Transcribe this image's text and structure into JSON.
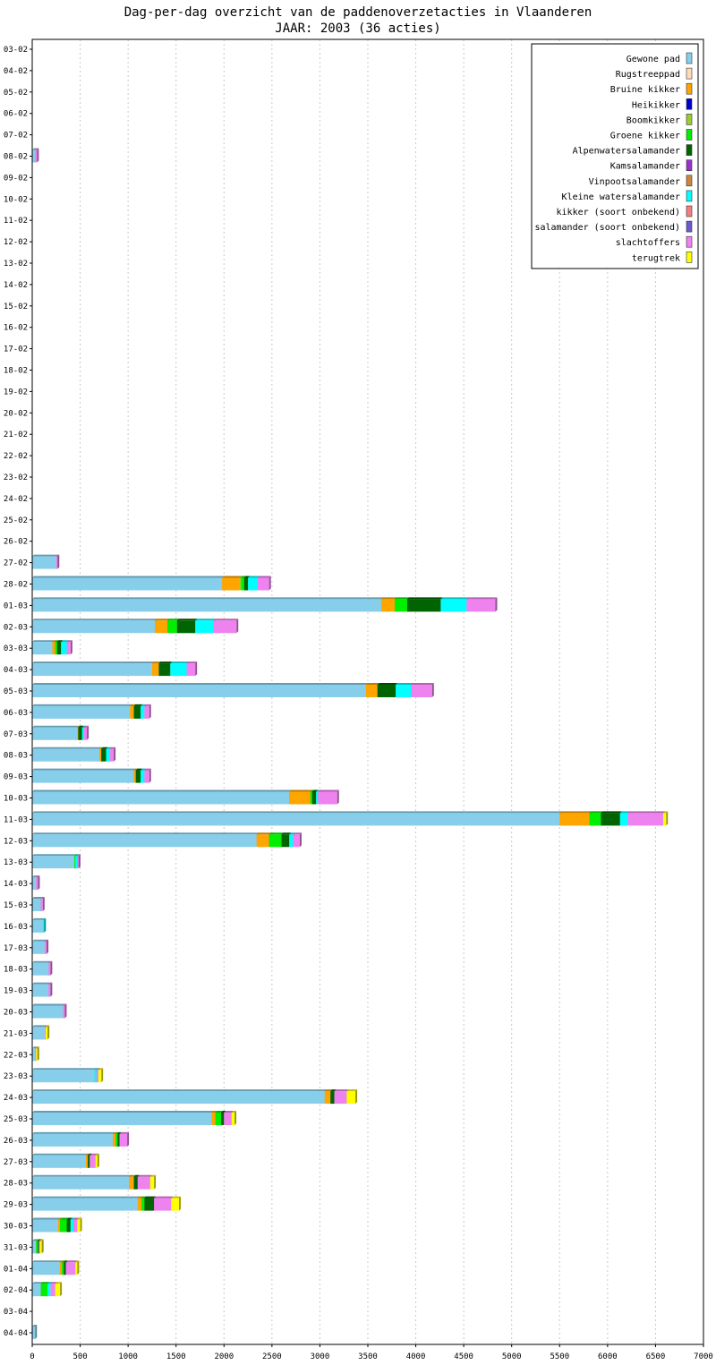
{
  "chart_data": {
    "type": "bar",
    "orientation": "horizontal",
    "stacked": true,
    "title": "Dag-per-dag overzicht van de paddenoverzetacties in Vlaanderen",
    "subtitle": "JAAR: 2003 (36 acties)",
    "xlabel": "",
    "ylabel": "",
    "xlim": [
      0,
      7000
    ],
    "xticks": [
      0,
      500,
      1000,
      1500,
      2000,
      2500,
      3000,
      3500,
      4000,
      4500,
      5000,
      5500,
      6000,
      6500,
      7000
    ],
    "grid": true,
    "legend_position": "top-right",
    "categories": [
      "03-02",
      "04-02",
      "05-02",
      "06-02",
      "07-02",
      "08-02",
      "09-02",
      "10-02",
      "11-02",
      "12-02",
      "13-02",
      "14-02",
      "15-02",
      "16-02",
      "17-02",
      "18-02",
      "19-02",
      "20-02",
      "21-02",
      "22-02",
      "23-02",
      "24-02",
      "25-02",
      "26-02",
      "27-02",
      "28-02",
      "01-03",
      "02-03",
      "03-03",
      "04-03",
      "05-03",
      "06-03",
      "07-03",
      "08-03",
      "09-03",
      "10-03",
      "11-03",
      "12-03",
      "13-03",
      "14-03",
      "15-03",
      "16-03",
      "17-03",
      "18-03",
      "19-03",
      "20-03",
      "21-03",
      "22-03",
      "23-03",
      "24-03",
      "25-03",
      "26-03",
      "27-03",
      "28-03",
      "29-03",
      "30-03",
      "31-03",
      "01-04",
      "02-04",
      "03-04",
      "04-04"
    ],
    "series": [
      {
        "name": "Gewone pad",
        "color": "#87ceeb",
        "values": [
          0,
          0,
          0,
          0,
          0,
          30,
          0,
          0,
          0,
          0,
          0,
          0,
          0,
          0,
          0,
          0,
          0,
          0,
          0,
          0,
          0,
          0,
          0,
          0,
          250,
          1980,
          3640,
          1280,
          210,
          1250,
          3480,
          1020,
          470,
          700,
          1060,
          2680,
          5500,
          2340,
          440,
          40,
          90,
          110,
          130,
          170,
          170,
          320,
          130,
          30,
          650,
          3050,
          1870,
          840,
          560,
          1010,
          1100,
          270,
          40,
          290,
          90,
          0,
          30
        ]
      },
      {
        "name": "Rugstreeppad",
        "color": "#ffdab9",
        "values": [
          0,
          0,
          0,
          0,
          0,
          0,
          0,
          0,
          0,
          0,
          0,
          0,
          0,
          0,
          0,
          0,
          0,
          0,
          0,
          0,
          0,
          0,
          0,
          0,
          0,
          0,
          0,
          0,
          0,
          0,
          0,
          0,
          0,
          0,
          0,
          0,
          0,
          0,
          0,
          0,
          0,
          0,
          0,
          0,
          0,
          0,
          0,
          0,
          0,
          0,
          0,
          0,
          0,
          0,
          0,
          0,
          0,
          0,
          0,
          0,
          0
        ]
      },
      {
        "name": "Bruine kikker",
        "color": "#ffa500",
        "values": [
          0,
          0,
          0,
          0,
          0,
          0,
          0,
          0,
          0,
          0,
          0,
          0,
          0,
          0,
          0,
          0,
          0,
          0,
          0,
          0,
          0,
          0,
          0,
          0,
          0,
          180,
          140,
          130,
          30,
          70,
          120,
          40,
          10,
          20,
          20,
          220,
          310,
          130,
          0,
          0,
          0,
          0,
          0,
          0,
          0,
          0,
          0,
          0,
          0,
          60,
          40,
          30,
          20,
          50,
          40,
          20,
          0,
          20,
          0,
          0,
          0
        ]
      },
      {
        "name": "Heikikker",
        "color": "#0000cd",
        "values": [
          0,
          0,
          0,
          0,
          0,
          0,
          0,
          0,
          0,
          0,
          0,
          0,
          0,
          0,
          0,
          0,
          0,
          0,
          0,
          0,
          0,
          0,
          0,
          0,
          0,
          0,
          0,
          0,
          0,
          0,
          0,
          0,
          0,
          0,
          0,
          0,
          0,
          0,
          0,
          0,
          0,
          0,
          0,
          0,
          0,
          0,
          0,
          0,
          0,
          0,
          0,
          0,
          0,
          0,
          0,
          0,
          0,
          0,
          0,
          0,
          0
        ]
      },
      {
        "name": "Boomkikker",
        "color": "#9acd32",
        "values": [
          0,
          0,
          0,
          0,
          0,
          0,
          0,
          0,
          0,
          0,
          0,
          0,
          0,
          0,
          0,
          0,
          0,
          0,
          0,
          0,
          0,
          0,
          0,
          0,
          0,
          20,
          0,
          0,
          0,
          0,
          0,
          0,
          0,
          0,
          0,
          0,
          0,
          0,
          0,
          0,
          0,
          0,
          0,
          0,
          0,
          0,
          0,
          0,
          0,
          0,
          0,
          0,
          0,
          0,
          0,
          0,
          0,
          0,
          0,
          0,
          0
        ]
      },
      {
        "name": "Groene kikker",
        "color": "#00ee00",
        "values": [
          0,
          0,
          0,
          0,
          0,
          0,
          0,
          0,
          0,
          0,
          0,
          0,
          0,
          0,
          0,
          0,
          0,
          0,
          0,
          0,
          0,
          0,
          0,
          0,
          0,
          30,
          130,
          100,
          20,
          0,
          0,
          0,
          0,
          0,
          0,
          20,
          120,
          130,
          10,
          0,
          0,
          0,
          0,
          0,
          0,
          0,
          0,
          0,
          0,
          0,
          60,
          20,
          0,
          0,
          30,
          70,
          20,
          20,
          70,
          0,
          0
        ]
      },
      {
        "name": "Alpenwatersalamander",
        "color": "#006400",
        "values": [
          0,
          0,
          0,
          0,
          0,
          0,
          0,
          0,
          0,
          0,
          0,
          0,
          0,
          0,
          0,
          0,
          0,
          0,
          0,
          0,
          0,
          0,
          0,
          0,
          0,
          40,
          350,
          190,
          40,
          120,
          190,
          70,
          40,
          50,
          50,
          40,
          200,
          80,
          0,
          0,
          0,
          0,
          0,
          0,
          0,
          0,
          0,
          0,
          0,
          40,
          30,
          20,
          20,
          40,
          100,
          40,
          10,
          20,
          0,
          0,
          0
        ]
      },
      {
        "name": "Kamsalamander",
        "color": "#9932cc",
        "values": [
          0,
          0,
          0,
          0,
          0,
          0,
          0,
          0,
          0,
          0,
          0,
          0,
          0,
          0,
          0,
          0,
          0,
          0,
          0,
          0,
          0,
          0,
          0,
          0,
          0,
          0,
          0,
          0,
          0,
          0,
          0,
          0,
          0,
          0,
          0,
          0,
          0,
          0,
          0,
          0,
          0,
          0,
          0,
          0,
          0,
          0,
          0,
          0,
          0,
          0,
          0,
          0,
          0,
          0,
          0,
          0,
          0,
          0,
          0,
          0,
          0
        ]
      },
      {
        "name": "Vinpootsalamander",
        "color": "#cd853f",
        "values": [
          0,
          0,
          0,
          0,
          0,
          0,
          0,
          0,
          0,
          0,
          0,
          0,
          0,
          0,
          0,
          0,
          0,
          0,
          0,
          0,
          0,
          0,
          0,
          0,
          0,
          0,
          0,
          0,
          0,
          0,
          0,
          0,
          0,
          0,
          0,
          0,
          0,
          0,
          0,
          0,
          0,
          0,
          0,
          0,
          0,
          0,
          0,
          0,
          0,
          0,
          0,
          0,
          0,
          0,
          0,
          0,
          0,
          0,
          0,
          0,
          0
        ]
      },
      {
        "name": "Kleine watersalamander",
        "color": "#00ffff",
        "values": [
          0,
          0,
          0,
          0,
          0,
          0,
          0,
          0,
          0,
          0,
          0,
          0,
          0,
          0,
          0,
          0,
          0,
          0,
          0,
          0,
          0,
          0,
          0,
          0,
          0,
          100,
          270,
          190,
          60,
          170,
          160,
          40,
          20,
          40,
          40,
          20,
          80,
          40,
          20,
          0,
          0,
          10,
          0,
          0,
          0,
          0,
          0,
          0,
          20,
          0,
          0,
          0,
          0,
          0,
          0,
          30,
          0,
          0,
          30,
          0,
          0
        ]
      },
      {
        "name": "kikker (soort onbekend)",
        "color": "#f08080",
        "values": [
          0,
          0,
          0,
          0,
          0,
          0,
          0,
          0,
          0,
          0,
          0,
          0,
          0,
          0,
          0,
          0,
          0,
          0,
          0,
          0,
          0,
          0,
          0,
          0,
          0,
          0,
          0,
          0,
          0,
          0,
          0,
          0,
          0,
          0,
          0,
          0,
          0,
          0,
          0,
          0,
          0,
          0,
          0,
          0,
          0,
          0,
          0,
          0,
          0,
          0,
          0,
          0,
          0,
          0,
          0,
          0,
          0,
          0,
          0,
          0,
          0
        ]
      },
      {
        "name": "salamander (soort onbekend)",
        "color": "#6a5acd",
        "values": [
          0,
          0,
          0,
          0,
          0,
          0,
          0,
          0,
          0,
          0,
          0,
          0,
          0,
          0,
          0,
          0,
          0,
          0,
          0,
          0,
          0,
          0,
          0,
          0,
          0,
          0,
          0,
          0,
          0,
          0,
          0,
          0,
          0,
          0,
          0,
          0,
          0,
          0,
          0,
          0,
          0,
          0,
          0,
          0,
          0,
          0,
          0,
          0,
          0,
          0,
          0,
          0,
          0,
          0,
          0,
          0,
          0,
          0,
          0,
          0,
          0
        ]
      },
      {
        "name": "slachtoffers",
        "color": "#ee82ee",
        "values": [
          0,
          0,
          0,
          0,
          0,
          20,
          0,
          0,
          0,
          0,
          0,
          0,
          0,
          0,
          0,
          0,
          0,
          0,
          0,
          0,
          0,
          0,
          0,
          0,
          10,
          120,
          300,
          240,
          40,
          90,
          220,
          50,
          30,
          40,
          50,
          200,
          370,
          70,
          10,
          20,
          20,
          0,
          20,
          20,
          20,
          20,
          10,
          10,
          20,
          130,
          80,
          80,
          60,
          130,
          180,
          40,
          10,
          100,
          50,
          0,
          0
        ]
      },
      {
        "name": "terugtrek",
        "color": "#ffff00",
        "values": [
          0,
          0,
          0,
          0,
          0,
          0,
          0,
          0,
          0,
          0,
          0,
          0,
          0,
          0,
          0,
          0,
          0,
          0,
          0,
          0,
          0,
          0,
          0,
          0,
          0,
          0,
          0,
          0,
          0,
          0,
          0,
          0,
          0,
          0,
          0,
          0,
          30,
          0,
          0,
          0,
          0,
          0,
          0,
          0,
          0,
          0,
          20,
          10,
          30,
          90,
          30,
          0,
          20,
          40,
          80,
          30,
          20,
          20,
          50,
          0,
          0
        ]
      }
    ]
  }
}
